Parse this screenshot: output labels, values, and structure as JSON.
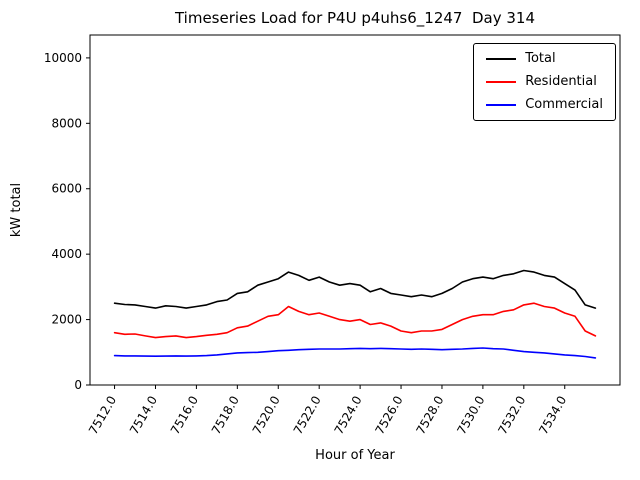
{
  "chart_data": {
    "type": "line",
    "title": "Timeseries Load for P4U p4uhs6_1247  Day 314",
    "xlabel": "Hour of Year",
    "ylabel": "kW total",
    "xlim": [
      7510.8,
      7536.7
    ],
    "ylim": [
      0,
      10700
    ],
    "grid": false,
    "legend_position": "upper right",
    "xticks": [
      7512,
      7514,
      7516,
      7518,
      7520,
      7522,
      7524,
      7526,
      7528,
      7530,
      7532,
      7534
    ],
    "xtick_labels": [
      "7512.0",
      "7514.0",
      "7516.0",
      "7518.0",
      "7520.0",
      "7522.0",
      "7524.0",
      "7526.0",
      "7528.0",
      "7530.0",
      "7532.0",
      "7534.0"
    ],
    "yticks": [
      0,
      2000,
      4000,
      6000,
      8000,
      10000
    ],
    "ytick_labels": [
      "0",
      "2000",
      "4000",
      "6000",
      "8000",
      "10000"
    ],
    "x": [
      7512.0,
      7512.5,
      7513.0,
      7513.5,
      7514.0,
      7514.5,
      7515.0,
      7515.5,
      7516.0,
      7516.5,
      7517.0,
      7517.5,
      7518.0,
      7518.5,
      7519.0,
      7519.5,
      7520.0,
      7520.5,
      7521.0,
      7521.5,
      7522.0,
      7522.5,
      7523.0,
      7523.5,
      7524.0,
      7524.5,
      7525.0,
      7525.5,
      7526.0,
      7526.5,
      7527.0,
      7527.5,
      7528.0,
      7528.5,
      7529.0,
      7529.5,
      7530.0,
      7530.5,
      7531.0,
      7531.5,
      7532.0,
      7532.5,
      7533.0,
      7533.5,
      7534.0,
      7534.5,
      7535.0,
      7535.5
    ],
    "series": [
      {
        "name": "Total",
        "color": "#000000",
        "values": [
          2500,
          2460,
          2450,
          2400,
          2350,
          2420,
          2400,
          2350,
          2400,
          2450,
          2550,
          2600,
          2800,
          2850,
          3050,
          3150,
          3250,
          3450,
          3350,
          3200,
          3300,
          3150,
          3050,
          3100,
          3050,
          2850,
          2950,
          2800,
          2750,
          2700,
          2750,
          2700,
          2800,
          2950,
          3150,
          3250,
          3300,
          3250,
          3350,
          3400,
          3500,
          3450,
          3350,
          3300,
          3100,
          2900,
          2450,
          2350
        ]
      },
      {
        "name": "Residential",
        "color": "#ff0000",
        "values": [
          1600,
          1550,
          1560,
          1500,
          1450,
          1480,
          1500,
          1450,
          1480,
          1520,
          1550,
          1600,
          1750,
          1800,
          1950,
          2100,
          2150,
          2400,
          2250,
          2150,
          2200,
          2100,
          2000,
          1950,
          2000,
          1850,
          1900,
          1800,
          1650,
          1600,
          1650,
          1650,
          1700,
          1850,
          2000,
          2100,
          2150,
          2150,
          2250,
          2300,
          2450,
          2500,
          2400,
          2350,
          2200,
          2100,
          1650,
          1500
        ]
      },
      {
        "name": "Commercial",
        "color": "#0000ff",
        "values": [
          900,
          890,
          890,
          885,
          880,
          885,
          890,
          885,
          890,
          900,
          920,
          950,
          980,
          990,
          1000,
          1020,
          1050,
          1060,
          1080,
          1090,
          1100,
          1100,
          1100,
          1110,
          1120,
          1110,
          1120,
          1110,
          1100,
          1090,
          1100,
          1090,
          1080,
          1090,
          1100,
          1120,
          1130,
          1110,
          1100,
          1060,
          1020,
          1000,
          980,
          950,
          920,
          900,
          870,
          830
        ]
      }
    ]
  }
}
